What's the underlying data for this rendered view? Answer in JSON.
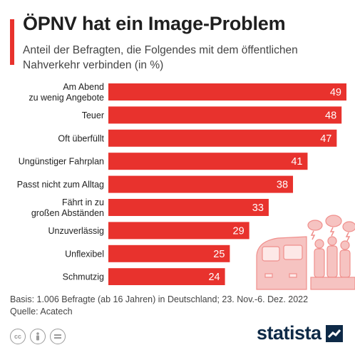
{
  "header": {
    "title": "ÖPNV hat ein Image-Problem",
    "subtitle": "Anteil der Befragten, die Folgendes mit dem öffentlichen Nahverkehr verbinden (in %)"
  },
  "chart_data": {
    "type": "bar",
    "orientation": "horizontal",
    "categories": [
      [
        "Am Abend",
        "zu wenig Angebote"
      ],
      [
        "Teuer"
      ],
      [
        "Oft überfüllt"
      ],
      [
        "Ungünstiger Fahrplan"
      ],
      [
        "Passt nicht zum Alltag"
      ],
      [
        "Fährt in zu",
        "großen Abständen"
      ],
      [
        "Unzuverlässig"
      ],
      [
        "Unflexibel"
      ],
      [
        "Schmutzig"
      ]
    ],
    "values": [
      49,
      48,
      47,
      41,
      38,
      33,
      29,
      25,
      24
    ],
    "title": "ÖPNV hat ein Image-Problem",
    "unit": "%",
    "xlim": [
      0,
      49
    ],
    "grid": false,
    "legend": "none",
    "colors": {
      "bar": "#e8322d",
      "label": "#ffffff",
      "category": "#222222"
    }
  },
  "footer": {
    "source_note": "Basis: 1.006 Befragte (ab 16 Jahren) in Deutschland; 23. Nov.-6. Dez. 2022",
    "source": "Quelle: Acatech"
  },
  "license_icons": [
    "creative-commons-icon",
    "attribution-icon",
    "no-derivatives-icon"
  ],
  "brand": {
    "name": "statista",
    "color": "#0e2a47"
  }
}
